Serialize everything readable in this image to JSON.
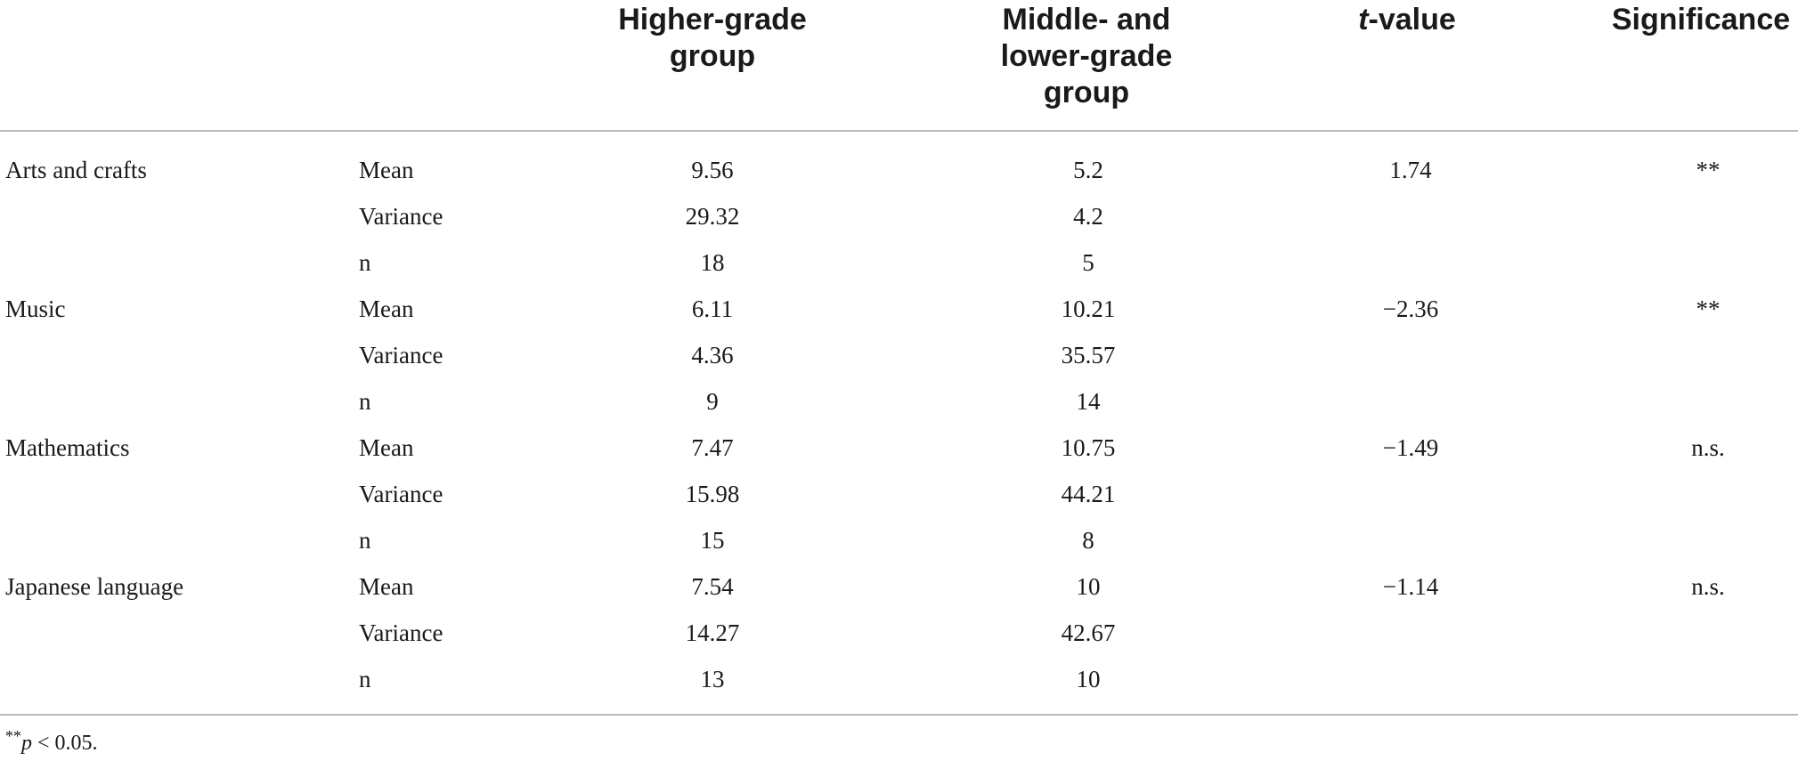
{
  "table": {
    "headers": {
      "col1": "",
      "col2": "",
      "higher": "Higher-grade\ngroup",
      "middle": "Middle- and\nlower-grade\ngroup",
      "t_value_italic": "t",
      "t_value_rest": "-value",
      "significance": "Significance"
    },
    "rows": [
      {
        "subject": "Arts and crafts",
        "stat": "Mean",
        "higher": "9.56",
        "middle": "5.2",
        "t": "1.74",
        "sig": "**"
      },
      {
        "subject": "",
        "stat": "Variance",
        "higher": "29.32",
        "middle": "4.2",
        "t": "",
        "sig": ""
      },
      {
        "subject": "",
        "stat": "n",
        "higher": "18",
        "middle": "5",
        "t": "",
        "sig": ""
      },
      {
        "subject": "Music",
        "stat": "Mean",
        "higher": "6.11",
        "middle": "10.21",
        "t": "−2.36",
        "sig": "**"
      },
      {
        "subject": "",
        "stat": "Variance",
        "higher": "4.36",
        "middle": "35.57",
        "t": "",
        "sig": ""
      },
      {
        "subject": "",
        "stat": "n",
        "higher": "9",
        "middle": "14",
        "t": "",
        "sig": ""
      },
      {
        "subject": "Mathematics",
        "stat": "Mean",
        "higher": "7.47",
        "middle": "10.75",
        "t": "−1.49",
        "sig": "n.s."
      },
      {
        "subject": "",
        "stat": "Variance",
        "higher": "15.98",
        "middle": "44.21",
        "t": "",
        "sig": ""
      },
      {
        "subject": "",
        "stat": "n",
        "higher": "15",
        "middle": "8",
        "t": "",
        "sig": ""
      },
      {
        "subject": "Japanese language",
        "stat": "Mean",
        "higher": "7.54",
        "middle": "10",
        "t": "−1.14",
        "sig": "n.s."
      },
      {
        "subject": "",
        "stat": "Variance",
        "higher": "14.27",
        "middle": "42.67",
        "t": "",
        "sig": ""
      },
      {
        "subject": "",
        "stat": "n",
        "higher": "13",
        "middle": "10",
        "t": "",
        "sig": ""
      }
    ]
  },
  "footnote": {
    "mark": "**",
    "p_symbol": "p",
    "rest": " < 0.05."
  }
}
